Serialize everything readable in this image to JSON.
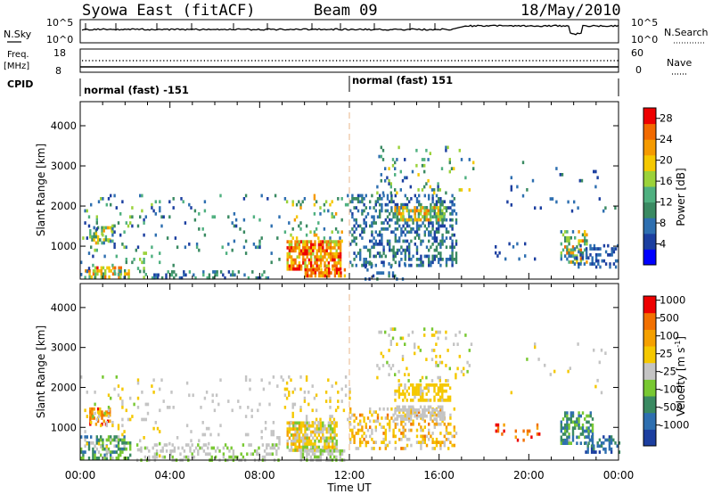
{
  "header": {
    "title": "Syowa East (fitACF)",
    "beam": "Beam 09",
    "date": "18/May/2010"
  },
  "top_panels": {
    "nsky_label": "N.Sky",
    "nsky_ticks": [
      "10^5",
      "10^0"
    ],
    "nsearch_label": "N.Search",
    "nsearch_ticks": [
      "10^5",
      "10^0"
    ],
    "freq_label_line1": "Freq.",
    "freq_label_line2": "[MHz]",
    "freq_ticks": [
      "18",
      "8"
    ],
    "nave_label": "Nave",
    "nave_ticks": [
      "60",
      "0"
    ],
    "cpid_label": "CPID",
    "cpid_segments": [
      "normal (fast) -151",
      "normal (fast) 151"
    ]
  },
  "colors": {
    "power_scale": [
      "#0000ff",
      "#1c3fa0",
      "#2e6fb0",
      "#3a8a62",
      "#4fb080",
      "#9bd23a",
      "#f5c800",
      "#f59a00",
      "#f26a00",
      "#ee0000"
    ],
    "velocity_scale": [
      "#1c3fa0",
      "#2e6fb0",
      "#3a8a62",
      "#78c832",
      "#c4c4c4",
      "#f5c800",
      "#f5a000",
      "#f27000",
      "#ee0000"
    ]
  },
  "chart_data": [
    {
      "type": "heatmap",
      "name": "power",
      "ylabel": "Slant Range [km]",
      "xlabel": "",
      "x_ticks": [
        "00:00",
        "04:00",
        "08:00",
        "12:00",
        "16:00",
        "20:00",
        "00:00"
      ],
      "y_ticks": [
        "1000",
        "2000",
        "3000",
        "4000"
      ],
      "x_range_hours": [
        0,
        24
      ],
      "y_range_km": [
        180,
        4600
      ],
      "colorbar_label": "Power [dB]",
      "colorbar_ticks": [
        "4",
        "8",
        "12",
        "16",
        "20",
        "24",
        "28"
      ],
      "colorbar_range": [
        0,
        30
      ],
      "regions": [
        {
          "t": [
            0.2,
            2.2
          ],
          "r": [
            200,
            500
          ],
          "v": [
            10,
            28
          ],
          "d": 0.55
        },
        {
          "t": [
            0.4,
            1.4
          ],
          "r": [
            1050,
            1500
          ],
          "v": [
            8,
            22
          ],
          "d": 0.5
        },
        {
          "t": [
            0.0,
            3.5
          ],
          "r": [
            250,
            2300
          ],
          "v": [
            4,
            18
          ],
          "d": 0.08
        },
        {
          "t": [
            3.0,
            8.5
          ],
          "r": [
            200,
            400
          ],
          "v": [
            4,
            14
          ],
          "d": 0.25
        },
        {
          "t": [
            3.5,
            9.0
          ],
          "r": [
            500,
            2300
          ],
          "v": [
            4,
            14
          ],
          "d": 0.05
        },
        {
          "t": [
            9.2,
            11.6
          ],
          "r": [
            450,
            1150
          ],
          "v": [
            16,
            30
          ],
          "d": 0.8
        },
        {
          "t": [
            10.0,
            11.8
          ],
          "r": [
            250,
            450
          ],
          "v": [
            20,
            30
          ],
          "d": 0.7
        },
        {
          "t": [
            9.0,
            12.0
          ],
          "r": [
            1100,
            2300
          ],
          "v": [
            6,
            24
          ],
          "d": 0.1
        },
        {
          "t": [
            12.0,
            16.8
          ],
          "r": [
            500,
            2300
          ],
          "v": [
            4,
            12
          ],
          "d": 0.35
        },
        {
          "t": [
            14.0,
            16.2
          ],
          "r": [
            1650,
            2000
          ],
          "v": [
            10,
            26
          ],
          "d": 0.65
        },
        {
          "t": [
            13.2,
            17.5
          ],
          "r": [
            2300,
            3500
          ],
          "v": [
            4,
            20
          ],
          "d": 0.1
        },
        {
          "t": [
            12.5,
            14.5
          ],
          "r": [
            200,
            600
          ],
          "v": [
            4,
            10
          ],
          "d": 0.2
        },
        {
          "t": [
            18.3,
            20.3
          ],
          "r": [
            700,
            1100
          ],
          "v": [
            4,
            8
          ],
          "d": 0.15
        },
        {
          "t": [
            21.4,
            22.6
          ],
          "r": [
            600,
            1400
          ],
          "v": [
            8,
            26
          ],
          "d": 0.5
        },
        {
          "t": [
            22.0,
            24.0
          ],
          "r": [
            500,
            1050
          ],
          "v": [
            4,
            8
          ],
          "d": 0.35
        },
        {
          "t": [
            19.0,
            24.0
          ],
          "r": [
            1800,
            3200
          ],
          "v": [
            4,
            10
          ],
          "d": 0.02
        }
      ]
    },
    {
      "type": "heatmap",
      "name": "velocity",
      "ylabel": "Slant Range [km]",
      "xlabel": "Time UT",
      "x_ticks": [
        "00:00",
        "04:00",
        "08:00",
        "12:00",
        "16:00",
        "20:00",
        "00:00"
      ],
      "y_ticks": [
        "1000",
        "2000",
        "3000",
        "4000"
      ],
      "x_range_hours": [
        0,
        24
      ],
      "y_range_km": [
        180,
        4600
      ],
      "colorbar_label": "Velocity [m s",
      "colorbar_label_exp": "-1",
      "colorbar_label_end": "]",
      "colorbar_ticks": [
        "1000",
        "500",
        "100",
        "25",
        "-25",
        "-100",
        "-500",
        "-1000"
      ],
      "colorbar_range": [
        -1000,
        1000
      ],
      "regions": [
        {
          "t": [
            0.0,
            2.2
          ],
          "r": [
            200,
            800
          ],
          "v": [
            -600,
            -50
          ],
          "d": 0.5
        },
        {
          "t": [
            0.4,
            1.3
          ],
          "r": [
            1050,
            1500
          ],
          "v": [
            100,
            900
          ],
          "d": 0.5
        },
        {
          "t": [
            0.0,
            3.5
          ],
          "r": [
            300,
            2300
          ],
          "v": [
            -200,
            300
          ],
          "d": 0.07
        },
        {
          "t": [
            2.5,
            8.8
          ],
          "r": [
            200,
            600
          ],
          "v": [
            -150,
            -20
          ],
          "d": 0.3
        },
        {
          "t": [
            3.5,
            9.0
          ],
          "r": [
            600,
            2300
          ],
          "v": [
            -100,
            100
          ],
          "d": 0.04
        },
        {
          "t": [
            9.2,
            11.4
          ],
          "r": [
            450,
            1150
          ],
          "v": [
            -200,
            400
          ],
          "d": 0.8
        },
        {
          "t": [
            9.8,
            11.8
          ],
          "r": [
            200,
            450
          ],
          "v": [
            -150,
            -20
          ],
          "d": 0.6
        },
        {
          "t": [
            9.0,
            12.0
          ],
          "r": [
            1100,
            2300
          ],
          "v": [
            -100,
            300
          ],
          "d": 0.1
        },
        {
          "t": [
            12.0,
            16.8
          ],
          "r": [
            500,
            1500
          ],
          "v": [
            -50,
            600
          ],
          "d": 0.35
        },
        {
          "t": [
            14.0,
            16.2
          ],
          "r": [
            1200,
            1550
          ],
          "v": [
            -20,
            30
          ],
          "d": 0.6
        },
        {
          "t": [
            14.0,
            16.5
          ],
          "r": [
            1700,
            2100
          ],
          "v": [
            80,
            300
          ],
          "d": 0.55
        },
        {
          "t": [
            13.2,
            17.5
          ],
          "r": [
            2200,
            3500
          ],
          "v": [
            -200,
            300
          ],
          "d": 0.1
        },
        {
          "t": [
            18.5,
            20.5
          ],
          "r": [
            700,
            1100
          ],
          "v": [
            300,
            900
          ],
          "d": 0.15
        },
        {
          "t": [
            21.4,
            22.8
          ],
          "r": [
            600,
            1400
          ],
          "v": [
            -700,
            -100
          ],
          "d": 0.5
        },
        {
          "t": [
            22.5,
            24.0
          ],
          "r": [
            350,
            800
          ],
          "v": [
            -900,
            -300
          ],
          "d": 0.4
        },
        {
          "t": [
            19.0,
            24.0
          ],
          "r": [
            1800,
            3200
          ],
          "v": [
            -200,
            200
          ],
          "d": 0.02
        }
      ]
    }
  ]
}
